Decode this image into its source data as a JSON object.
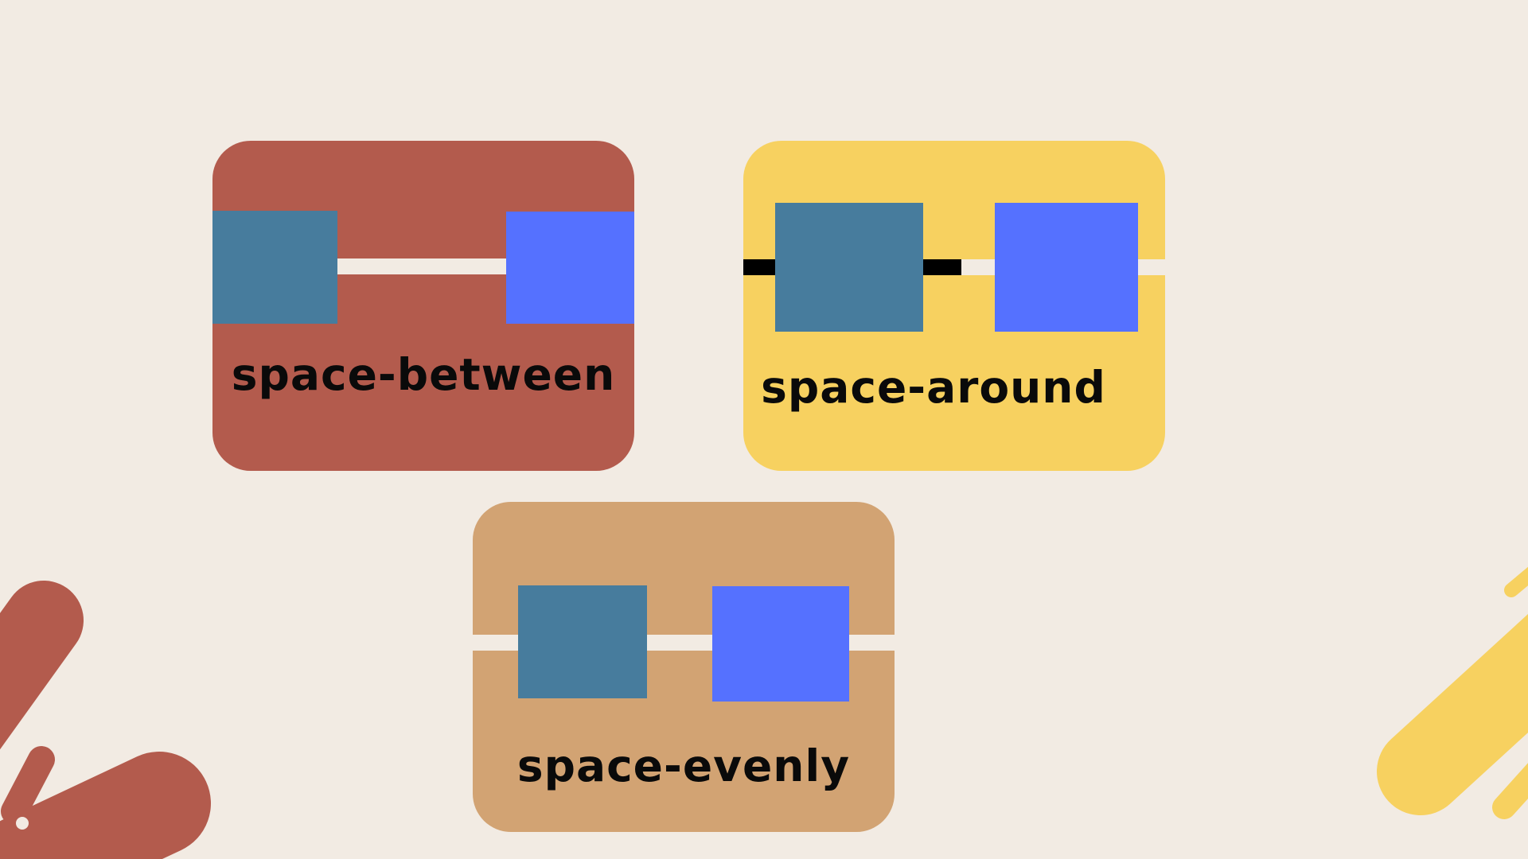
{
  "palette": {
    "background": "#f2ebe3",
    "between_card": "#b35b4d",
    "around_card": "#f7d160",
    "evenly_card": "#d2a373",
    "teal_item": "#477c9d",
    "blue_item": "#5571ff",
    "rail_light": "#f2ebe3",
    "rail_dark": "#000000"
  },
  "cards": {
    "between": {
      "label": "space-between"
    },
    "around": {
      "label": "space-around"
    },
    "evenly": {
      "label": "space-evenly"
    }
  }
}
